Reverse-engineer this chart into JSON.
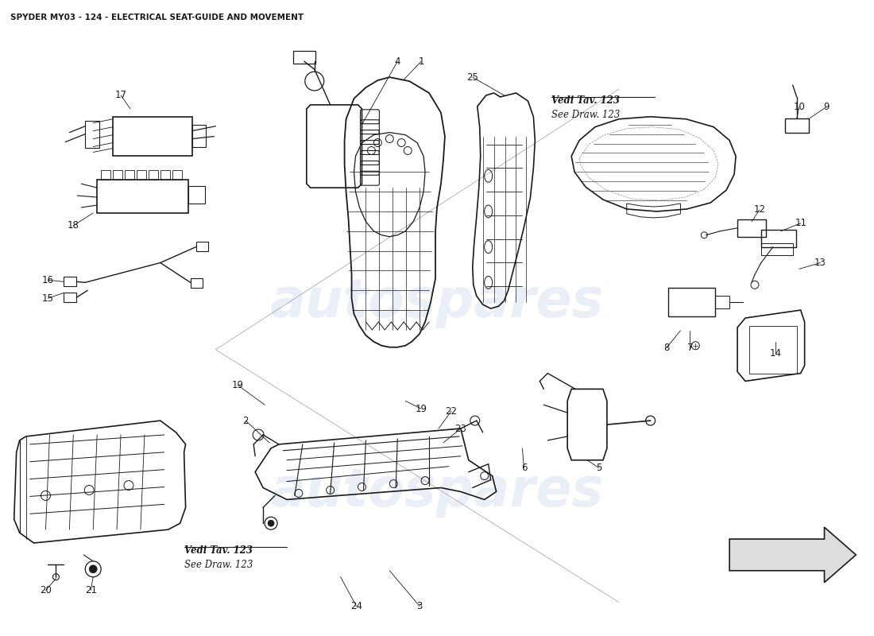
{
  "title": "SPYDER MY03 - 124 - ELECTRICAL SEAT-GUIDE AND MOVEMENT",
  "title_fontsize": 7.5,
  "bg_color": "#ffffff",
  "line_color": "#1a1a1a",
  "watermark_color": "#c8d4e8",
  "watermark_alpha": 0.38,
  "watermark_fontsize": 48,
  "label_fontsize": 8.5,
  "vedi_tav1": "Vedi Tav. 123",
  "see_draw1": "See Draw. 123",
  "vedi_tav2": "Vedi Tav. 123",
  "see_draw2": "See Draw. 123"
}
